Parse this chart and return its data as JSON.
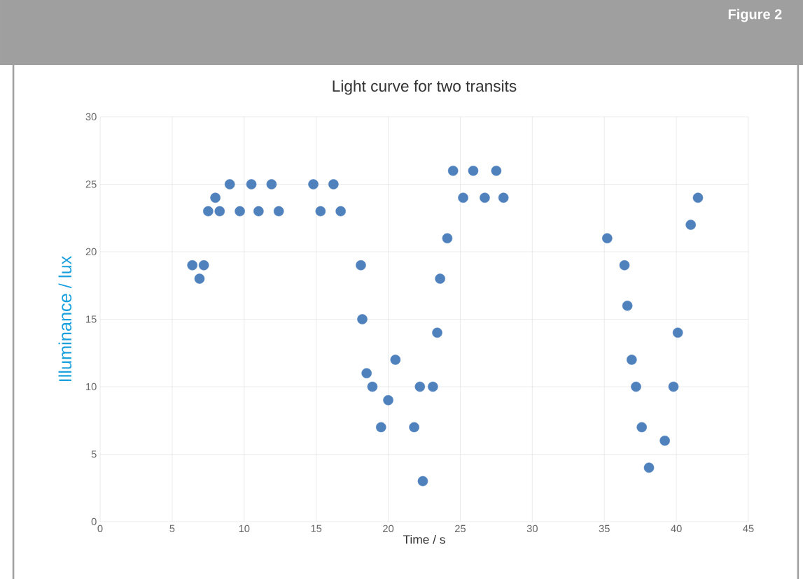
{
  "chart_data": {
    "type": "scatter",
    "title": "Light curve for two transits",
    "xlabel": "Time / s",
    "ylabel": "Illuminance / lux",
    "annotations": [
      "Figure 2"
    ],
    "series": [
      {
        "color": "#4f81bd",
        "x": [
          6.4,
          6.9,
          7.2,
          7.5,
          8.0,
          8.3,
          9.0,
          9.7,
          10.5,
          11.0,
          11.9,
          12.4,
          14.8,
          15.3,
          16.2,
          16.7,
          18.1,
          18.2,
          18.5,
          18.9,
          19.5,
          20.0,
          20.5,
          21.8,
          22.2,
          22.4,
          23.1,
          23.4,
          23.6,
          24.1,
          24.5,
          25.2,
          25.9,
          26.7,
          27.5,
          28.0,
          35.2,
          36.4,
          36.6,
          36.9,
          37.2,
          37.6,
          38.1,
          39.2,
          39.8,
          40.1,
          41.0,
          41.5
        ],
        "values": [
          19,
          18,
          19,
          23,
          24,
          23,
          25,
          23,
          25,
          23,
          25,
          23,
          25,
          23,
          25,
          23,
          19,
          15,
          11,
          10,
          7,
          9,
          12,
          7,
          10,
          3,
          10,
          14,
          18,
          21,
          26,
          24,
          26,
          24,
          26,
          24,
          21,
          19,
          16,
          12,
          10,
          7,
          4,
          6,
          10,
          14,
          22,
          24
        ]
      }
    ],
    "xlim": [
      0,
      45
    ],
    "xticks": [
      0,
      5,
      10,
      15,
      20,
      25,
      30,
      35,
      40,
      45
    ],
    "ylim": [
      0,
      30
    ],
    "yticks": [
      0,
      5,
      10,
      15,
      20,
      25,
      30
    ],
    "grid": true,
    "marker": "circle"
  }
}
